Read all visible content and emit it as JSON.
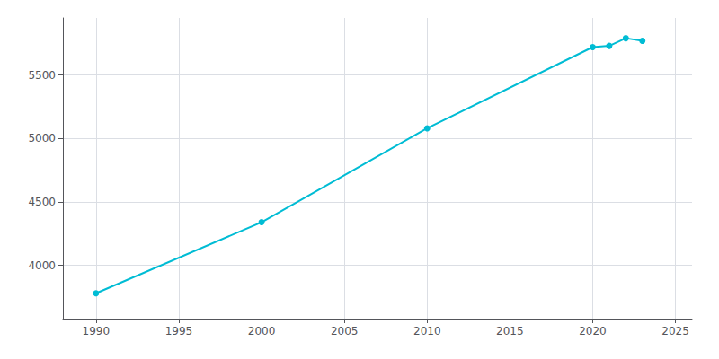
{
  "chart_data": {
    "type": "line",
    "x": [
      1990,
      2000,
      2010,
      2020,
      2021,
      2022,
      2023
    ],
    "values": [
      3780,
      4340,
      5080,
      5720,
      5730,
      5790,
      5770
    ],
    "color": "#00BCD4",
    "marker": "circle",
    "xlim": [
      1988,
      2026
    ],
    "ylim": [
      3580,
      5950
    ],
    "xticks": [
      1990,
      1995,
      2000,
      2005,
      2010,
      2015,
      2020,
      2025
    ],
    "yticks": [
      4000,
      4500,
      5000,
      5500
    ],
    "grid": true
  }
}
